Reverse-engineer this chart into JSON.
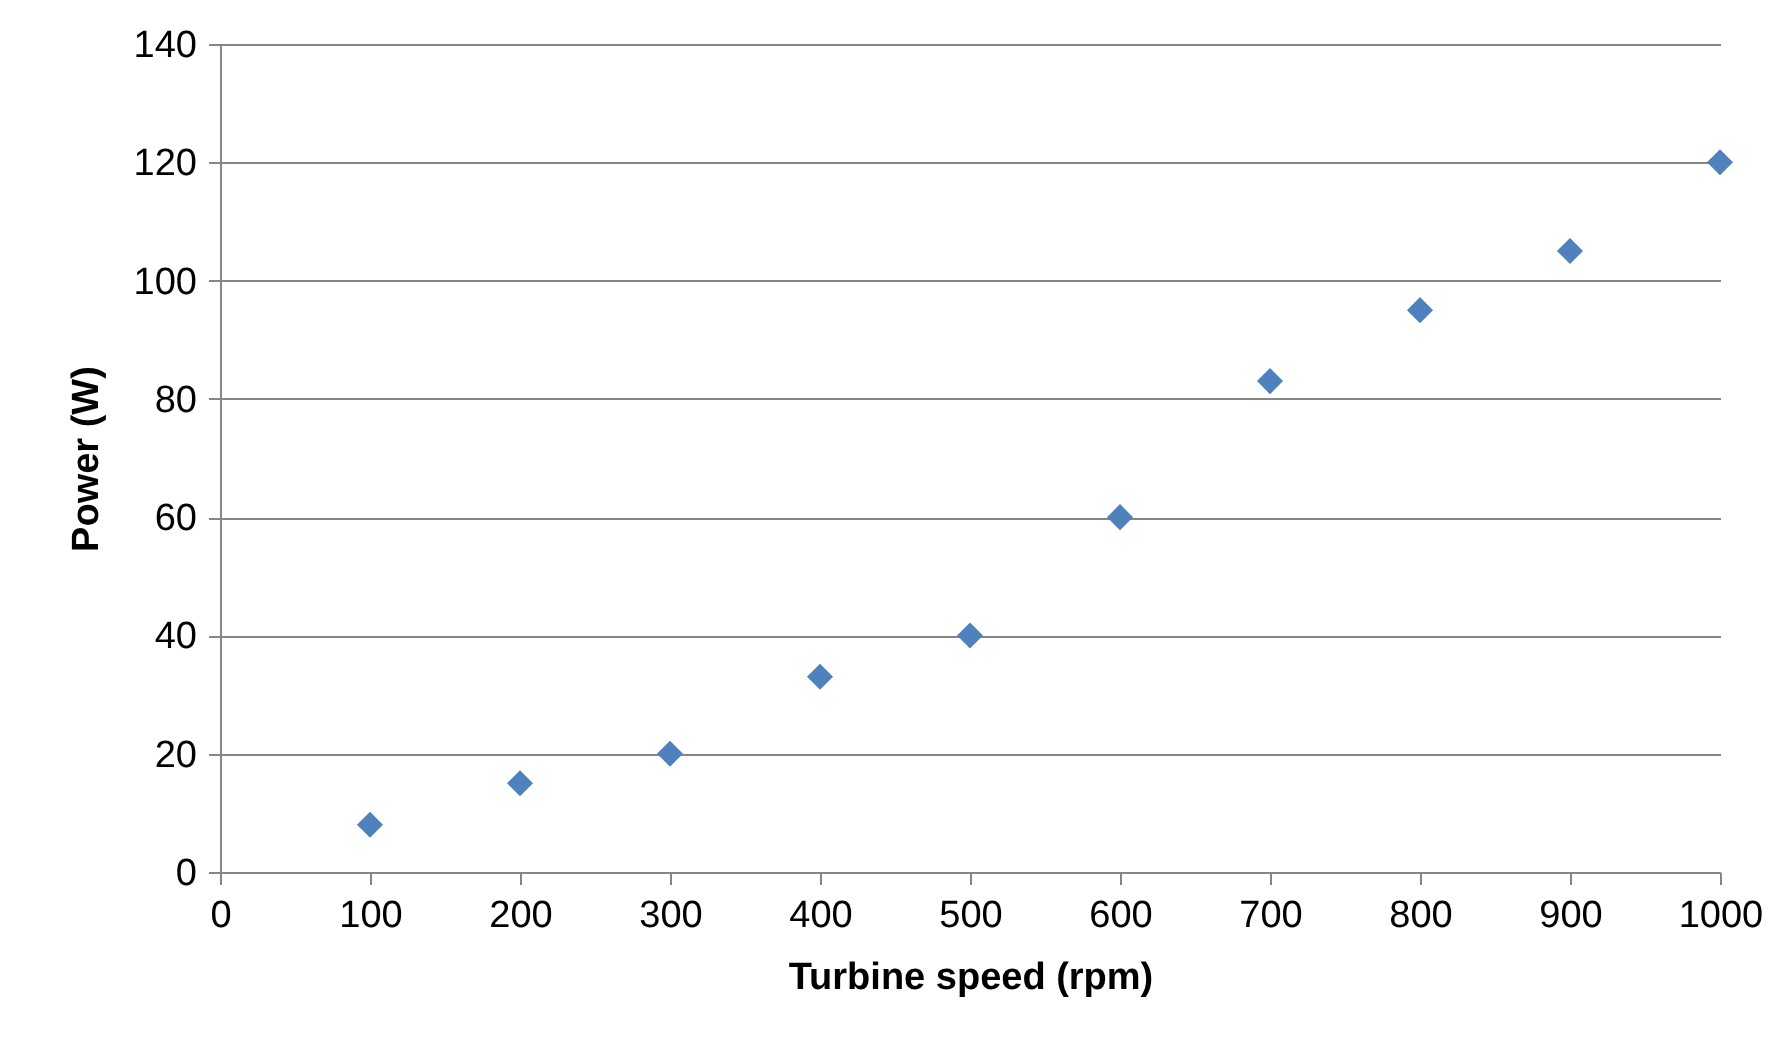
{
  "chart_data": {
    "type": "scatter",
    "xlabel": "Turbine speed (rpm)",
    "ylabel": "Power (W)",
    "x": [
      100,
      200,
      300,
      400,
      500,
      600,
      700,
      800,
      900,
      1000
    ],
    "series": [
      {
        "color": "#4f81bd",
        "values": [
          8,
          15,
          20,
          33,
          40,
          60,
          83,
          95,
          105,
          120
        ]
      }
    ],
    "xlim": [
      0,
      1000
    ],
    "xticks": [
      0,
      100,
      200,
      300,
      400,
      500,
      600,
      700,
      800,
      900,
      1000
    ],
    "ylim": [
      0,
      140
    ],
    "yticks": [
      0,
      20,
      40,
      60,
      80,
      100,
      120,
      140
    ],
    "grid": "y",
    "marker": "diamond",
    "legend": false
  }
}
